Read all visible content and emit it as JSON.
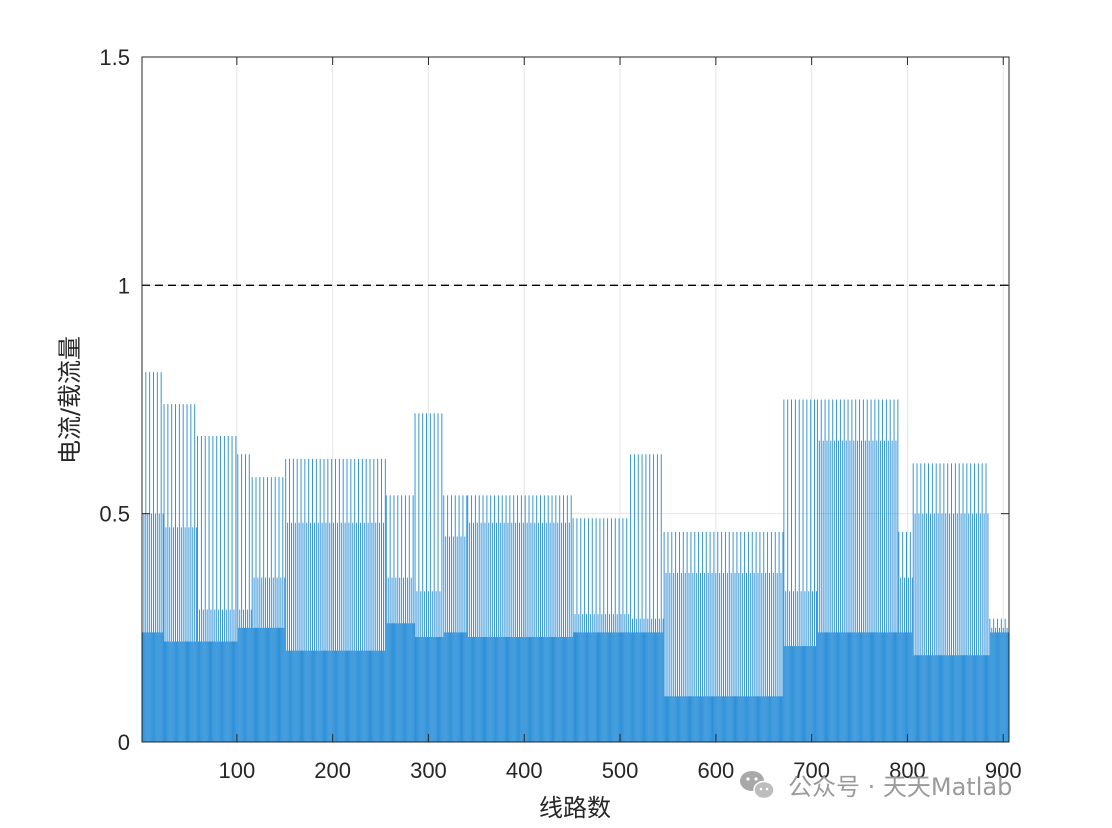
{
  "chart_data": {
    "type": "bar",
    "title": "",
    "xlabel": "线路数",
    "ylabel": "电流/载流量",
    "xlim": [
      1,
      906
    ],
    "ylim": [
      0,
      1.5
    ],
    "xticks": [
      100,
      200,
      300,
      400,
      500,
      600,
      700,
      800,
      900
    ],
    "yticks": [
      0,
      0.5,
      1,
      1.5
    ],
    "ytick_labels": [
      "0",
      "0.5",
      "1",
      "1.5"
    ],
    "grid": true,
    "bar_color": "#2b8fd8",
    "reference_line": {
      "y": 1,
      "style": "dashed",
      "color": "#000000"
    },
    "series": [
      {
        "segments": [
          {
            "x_start": 1,
            "x_end": 23,
            "max": 0.81,
            "mid": 0.5,
            "low": 0.24
          },
          {
            "x_start": 24,
            "x_end": 58,
            "max": 0.74,
            "mid": 0.47,
            "low": 0.22
          },
          {
            "x_start": 59,
            "x_end": 100,
            "max": 0.67,
            "mid": 0.29,
            "low": 0.22
          },
          {
            "x_start": 101,
            "x_end": 115,
            "max": 0.63,
            "mid": 0.29,
            "low": 0.25
          },
          {
            "x_start": 116,
            "x_end": 150,
            "max": 0.58,
            "mid": 0.36,
            "low": 0.25
          },
          {
            "x_start": 151,
            "x_end": 255,
            "max": 0.62,
            "mid": 0.48,
            "low": 0.2
          },
          {
            "x_start": 256,
            "x_end": 285,
            "max": 0.54,
            "mid": 0.36,
            "low": 0.26
          },
          {
            "x_start": 286,
            "x_end": 315,
            "max": 0.72,
            "mid": 0.33,
            "low": 0.23
          },
          {
            "x_start": 316,
            "x_end": 340,
            "max": 0.54,
            "mid": 0.45,
            "low": 0.24
          },
          {
            "x_start": 341,
            "x_end": 450,
            "max": 0.54,
            "mid": 0.48,
            "low": 0.23
          },
          {
            "x_start": 451,
            "x_end": 510,
            "max": 0.49,
            "mid": 0.28,
            "low": 0.24
          },
          {
            "x_start": 511,
            "x_end": 545,
            "max": 0.63,
            "mid": 0.27,
            "low": 0.24
          },
          {
            "x_start": 546,
            "x_end": 670,
            "max": 0.46,
            "mid": 0.37,
            "low": 0.1
          },
          {
            "x_start": 671,
            "x_end": 705,
            "max": 0.75,
            "mid": 0.33,
            "low": 0.21
          },
          {
            "x_start": 706,
            "x_end": 790,
            "max": 0.75,
            "mid": 0.66,
            "low": 0.24
          },
          {
            "x_start": 791,
            "x_end": 805,
            "max": 0.46,
            "mid": 0.36,
            "low": 0.24
          },
          {
            "x_start": 806,
            "x_end": 885,
            "max": 0.61,
            "mid": 0.5,
            "low": 0.19
          },
          {
            "x_start": 886,
            "x_end": 906,
            "max": 0.27,
            "mid": 0.25,
            "low": 0.24
          }
        ]
      }
    ]
  },
  "watermark": {
    "text": "公众号 · 天天Matlab",
    "icon": "wechat-icon"
  }
}
